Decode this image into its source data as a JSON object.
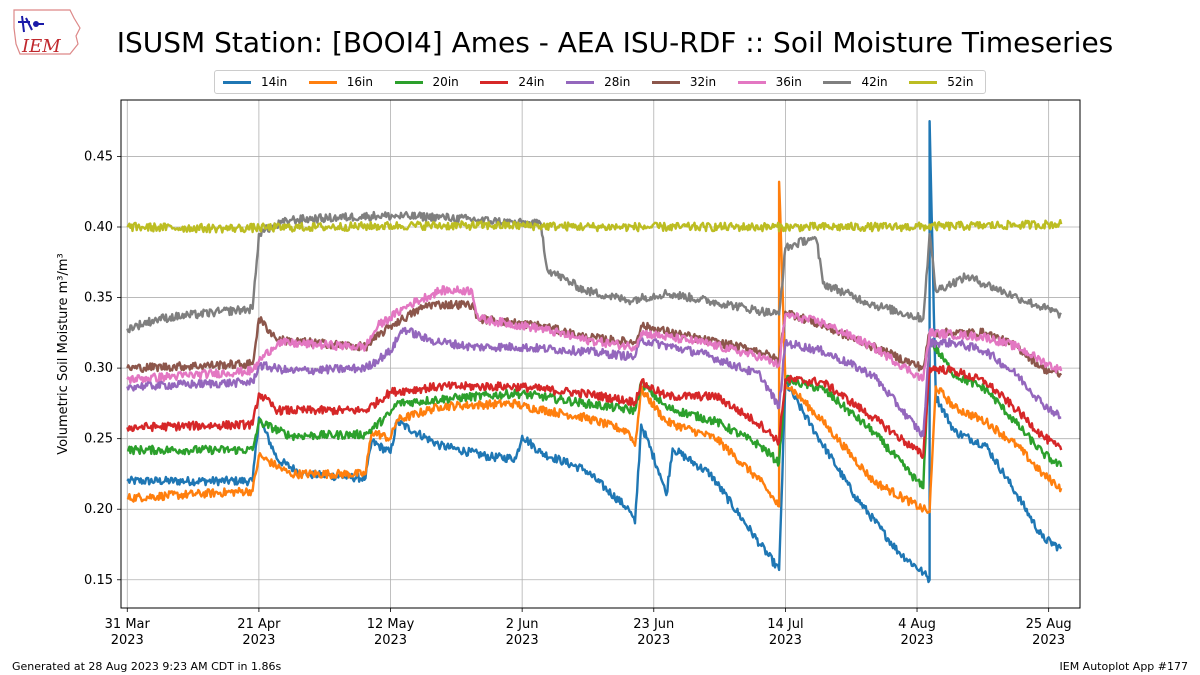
{
  "header": {
    "title": "ISUSM Station: [BOOI4] Ames - AEA ISU-RDF :: Soil Moisture Timeseries",
    "logo_text": "IEM"
  },
  "footer": {
    "generated": "Generated at 28 Aug 2023 9:23 AM CDT in 1.86s",
    "app": "IEM Autoplot App #177"
  },
  "chart_data": {
    "type": "line",
    "title": "ISUSM Station: [BOOI4] Ames - AEA ISU-RDF :: Soil Moisture Timeseries",
    "xlabel": "",
    "ylabel": "Volumetric Soil Moisture m³/m³",
    "xlim": [
      "2023-03-30",
      "2023-08-30"
    ],
    "ylim": [
      0.13,
      0.49
    ],
    "yticks": [
      0.15,
      0.2,
      0.25,
      0.3,
      0.35,
      0.4,
      0.45
    ],
    "xticks": [
      {
        "date": "2023-03-31",
        "label1": "31 Mar",
        "label2": "2023"
      },
      {
        "date": "2023-04-21",
        "label1": "21 Apr",
        "label2": "2023"
      },
      {
        "date": "2023-05-12",
        "label1": "12 May",
        "label2": "2023"
      },
      {
        "date": "2023-06-02",
        "label1": "2 Jun",
        "label2": "2023"
      },
      {
        "date": "2023-06-23",
        "label1": "23 Jun",
        "label2": "2023"
      },
      {
        "date": "2023-07-14",
        "label1": "14 Jul",
        "label2": "2023"
      },
      {
        "date": "2023-08-04",
        "label1": "4 Aug",
        "label2": "2023"
      },
      {
        "date": "2023-08-25",
        "label1": "25 Aug",
        "label2": "2023"
      }
    ],
    "grid": true,
    "legend_position": "top-center",
    "series": [
      {
        "name": "14in",
        "color": "#1f77b4",
        "points": [
          [
            "2023-03-31",
            0.22
          ],
          [
            "2023-04-20",
            0.22
          ],
          [
            "2023-04-21",
            0.265
          ],
          [
            "2023-04-24",
            0.235
          ],
          [
            "2023-04-28",
            0.225
          ],
          [
            "2023-05-08",
            0.222
          ],
          [
            "2023-05-09",
            0.248
          ],
          [
            "2023-05-12",
            0.24
          ],
          [
            "2023-05-13",
            0.262
          ],
          [
            "2023-05-20",
            0.245
          ],
          [
            "2023-05-28",
            0.237
          ],
          [
            "2023-06-01",
            0.236
          ],
          [
            "2023-06-02",
            0.252
          ],
          [
            "2023-06-05",
            0.24
          ],
          [
            "2023-06-12",
            0.228
          ],
          [
            "2023-06-19",
            0.2
          ],
          [
            "2023-06-20",
            0.19
          ],
          [
            "2023-06-21",
            0.26
          ],
          [
            "2023-06-24",
            0.225
          ],
          [
            "2023-06-25",
            0.21
          ],
          [
            "2023-06-26",
            0.243
          ],
          [
            "2023-07-02",
            0.225
          ],
          [
            "2023-07-10",
            0.175
          ],
          [
            "2023-07-13",
            0.157
          ],
          [
            "2023-07-14",
            0.29
          ],
          [
            "2023-07-18",
            0.26
          ],
          [
            "2023-07-25",
            0.21
          ],
          [
            "2023-08-01",
            0.17
          ],
          [
            "2023-08-05",
            0.155
          ],
          [
            "2023-08-06",
            0.15
          ],
          [
            "2023-08-06",
            0.475
          ],
          [
            "2023-08-07",
            0.28
          ],
          [
            "2023-08-10",
            0.255
          ],
          [
            "2023-08-15",
            0.245
          ],
          [
            "2023-08-20",
            0.21
          ],
          [
            "2023-08-24",
            0.18
          ],
          [
            "2023-08-27",
            0.172
          ]
        ]
      },
      {
        "name": "16in",
        "color": "#ff7f0e",
        "points": [
          [
            "2023-03-31",
            0.208
          ],
          [
            "2023-04-20",
            0.213
          ],
          [
            "2023-04-21",
            0.238
          ],
          [
            "2023-04-26",
            0.225
          ],
          [
            "2023-05-08",
            0.225
          ],
          [
            "2023-05-09",
            0.255
          ],
          [
            "2023-05-12",
            0.25
          ],
          [
            "2023-05-13",
            0.263
          ],
          [
            "2023-05-20",
            0.273
          ],
          [
            "2023-06-01",
            0.275
          ],
          [
            "2023-06-02",
            0.273
          ],
          [
            "2023-06-12",
            0.265
          ],
          [
            "2023-06-19",
            0.255
          ],
          [
            "2023-06-20",
            0.245
          ],
          [
            "2023-06-21",
            0.285
          ],
          [
            "2023-06-25",
            0.262
          ],
          [
            "2023-07-03",
            0.25
          ],
          [
            "2023-07-10",
            0.22
          ],
          [
            "2023-07-13",
            0.202
          ],
          [
            "2023-07-13",
            0.432
          ],
          [
            "2023-07-14",
            0.29
          ],
          [
            "2023-07-20",
            0.262
          ],
          [
            "2023-07-28",
            0.22
          ],
          [
            "2023-08-05",
            0.2
          ],
          [
            "2023-08-06",
            0.198
          ],
          [
            "2023-08-07",
            0.287
          ],
          [
            "2023-08-10",
            0.272
          ],
          [
            "2023-08-15",
            0.262
          ],
          [
            "2023-08-20",
            0.245
          ],
          [
            "2023-08-24",
            0.225
          ],
          [
            "2023-08-27",
            0.215
          ]
        ]
      },
      {
        "name": "20in",
        "color": "#2ca02c",
        "points": [
          [
            "2023-03-31",
            0.242
          ],
          [
            "2023-04-20",
            0.242
          ],
          [
            "2023-04-21",
            0.262
          ],
          [
            "2023-04-26",
            0.252
          ],
          [
            "2023-05-08",
            0.253
          ],
          [
            "2023-05-12",
            0.268
          ],
          [
            "2023-05-13",
            0.275
          ],
          [
            "2023-05-20",
            0.278
          ],
          [
            "2023-06-01",
            0.282
          ],
          [
            "2023-06-05",
            0.28
          ],
          [
            "2023-06-12",
            0.275
          ],
          [
            "2023-06-20",
            0.27
          ],
          [
            "2023-06-21",
            0.29
          ],
          [
            "2023-06-25",
            0.272
          ],
          [
            "2023-07-03",
            0.262
          ],
          [
            "2023-07-10",
            0.245
          ],
          [
            "2023-07-13",
            0.233
          ],
          [
            "2023-07-14",
            0.292
          ],
          [
            "2023-07-20",
            0.285
          ],
          [
            "2023-07-28",
            0.255
          ],
          [
            "2023-08-05",
            0.215
          ],
          [
            "2023-08-06",
            0.32
          ],
          [
            "2023-08-10",
            0.295
          ],
          [
            "2023-08-15",
            0.285
          ],
          [
            "2023-08-20",
            0.26
          ],
          [
            "2023-08-24",
            0.24
          ],
          [
            "2023-08-27",
            0.23
          ]
        ]
      },
      {
        "name": "24in",
        "color": "#d62728",
        "points": [
          [
            "2023-03-31",
            0.258
          ],
          [
            "2023-04-20",
            0.26
          ],
          [
            "2023-04-21",
            0.282
          ],
          [
            "2023-04-24",
            0.27
          ],
          [
            "2023-05-08",
            0.27
          ],
          [
            "2023-05-12",
            0.283
          ],
          [
            "2023-05-20",
            0.287
          ],
          [
            "2023-06-01",
            0.287
          ],
          [
            "2023-06-12",
            0.282
          ],
          [
            "2023-06-20",
            0.276
          ],
          [
            "2023-06-21",
            0.29
          ],
          [
            "2023-06-25",
            0.28
          ],
          [
            "2023-07-03",
            0.28
          ],
          [
            "2023-07-10",
            0.26
          ],
          [
            "2023-07-13",
            0.248
          ],
          [
            "2023-07-14",
            0.292
          ],
          [
            "2023-07-20",
            0.29
          ],
          [
            "2023-07-28",
            0.265
          ],
          [
            "2023-08-05",
            0.238
          ],
          [
            "2023-08-06",
            0.3
          ],
          [
            "2023-08-10",
            0.298
          ],
          [
            "2023-08-15",
            0.29
          ],
          [
            "2023-08-20",
            0.27
          ],
          [
            "2023-08-24",
            0.252
          ],
          [
            "2023-08-27",
            0.242
          ]
        ]
      },
      {
        "name": "28in",
        "color": "#9467bd",
        "points": [
          [
            "2023-03-31",
            0.287
          ],
          [
            "2023-04-20",
            0.29
          ],
          [
            "2023-04-21",
            0.302
          ],
          [
            "2023-04-26",
            0.298
          ],
          [
            "2023-05-08",
            0.3
          ],
          [
            "2023-05-12",
            0.312
          ],
          [
            "2023-05-14",
            0.328
          ],
          [
            "2023-05-18",
            0.32
          ],
          [
            "2023-05-25",
            0.315
          ],
          [
            "2023-06-01",
            0.315
          ],
          [
            "2023-06-12",
            0.312
          ],
          [
            "2023-06-20",
            0.308
          ],
          [
            "2023-06-21",
            0.32
          ],
          [
            "2023-07-01",
            0.31
          ],
          [
            "2023-07-10",
            0.295
          ],
          [
            "2023-07-13",
            0.272
          ],
          [
            "2023-07-14",
            0.318
          ],
          [
            "2023-07-20",
            0.312
          ],
          [
            "2023-07-28",
            0.295
          ],
          [
            "2023-08-05",
            0.252
          ],
          [
            "2023-08-06",
            0.318
          ],
          [
            "2023-08-10",
            0.318
          ],
          [
            "2023-08-15",
            0.312
          ],
          [
            "2023-08-20",
            0.295
          ],
          [
            "2023-08-24",
            0.275
          ],
          [
            "2023-08-27",
            0.265
          ]
        ]
      },
      {
        "name": "32in",
        "color": "#8c564b",
        "points": [
          [
            "2023-03-31",
            0.3
          ],
          [
            "2023-04-20",
            0.303
          ],
          [
            "2023-04-21",
            0.335
          ],
          [
            "2023-04-24",
            0.32
          ],
          [
            "2023-05-08",
            0.315
          ],
          [
            "2023-05-12",
            0.33
          ],
          [
            "2023-05-18",
            0.345
          ],
          [
            "2023-05-25",
            0.345
          ],
          [
            "2023-05-26",
            0.335
          ],
          [
            "2023-06-05",
            0.33
          ],
          [
            "2023-06-12",
            0.322
          ],
          [
            "2023-06-20",
            0.318
          ],
          [
            "2023-06-21",
            0.33
          ],
          [
            "2023-07-01",
            0.32
          ],
          [
            "2023-07-10",
            0.312
          ],
          [
            "2023-07-13",
            0.305
          ],
          [
            "2023-07-14",
            0.34
          ],
          [
            "2023-07-20",
            0.33
          ],
          [
            "2023-07-28",
            0.315
          ],
          [
            "2023-08-05",
            0.3
          ],
          [
            "2023-08-06",
            0.325
          ],
          [
            "2023-08-15",
            0.325
          ],
          [
            "2023-08-20",
            0.315
          ],
          [
            "2023-08-24",
            0.3
          ],
          [
            "2023-08-27",
            0.295
          ]
        ]
      },
      {
        "name": "36in",
        "color": "#e377c2",
        "points": [
          [
            "2023-03-31",
            0.292
          ],
          [
            "2023-04-20",
            0.298
          ],
          [
            "2023-04-21",
            0.305
          ],
          [
            "2023-04-24",
            0.318
          ],
          [
            "2023-05-08",
            0.315
          ],
          [
            "2023-05-10",
            0.33
          ],
          [
            "2023-05-15",
            0.345
          ],
          [
            "2023-05-20",
            0.355
          ],
          [
            "2023-05-25",
            0.355
          ],
          [
            "2023-05-26",
            0.335
          ],
          [
            "2023-06-05",
            0.328
          ],
          [
            "2023-06-12",
            0.32
          ],
          [
            "2023-06-20",
            0.315
          ],
          [
            "2023-06-21",
            0.325
          ],
          [
            "2023-07-01",
            0.318
          ],
          [
            "2023-07-10",
            0.308
          ],
          [
            "2023-07-13",
            0.302
          ],
          [
            "2023-07-14",
            0.338
          ],
          [
            "2023-07-20",
            0.332
          ],
          [
            "2023-07-28",
            0.315
          ],
          [
            "2023-08-05",
            0.292
          ],
          [
            "2023-08-06",
            0.325
          ],
          [
            "2023-08-15",
            0.322
          ],
          [
            "2023-08-20",
            0.315
          ],
          [
            "2023-08-24",
            0.305
          ],
          [
            "2023-08-27",
            0.298
          ]
        ]
      },
      {
        "name": "42in",
        "color": "#7f7f7f",
        "points": [
          [
            "2023-03-31",
            0.328
          ],
          [
            "2023-04-05",
            0.335
          ],
          [
            "2023-04-15",
            0.34
          ],
          [
            "2023-04-20",
            0.342
          ],
          [
            "2023-04-21",
            0.395
          ],
          [
            "2023-04-22",
            0.398
          ],
          [
            "2023-04-26",
            0.405
          ],
          [
            "2023-05-10",
            0.408
          ],
          [
            "2023-05-20",
            0.407
          ],
          [
            "2023-06-01",
            0.403
          ],
          [
            "2023-06-05",
            0.402
          ],
          [
            "2023-06-06",
            0.37
          ],
          [
            "2023-06-12",
            0.355
          ],
          [
            "2023-06-19",
            0.348
          ],
          [
            "2023-06-25",
            0.353
          ],
          [
            "2023-07-05",
            0.345
          ],
          [
            "2023-07-13",
            0.338
          ],
          [
            "2023-07-14",
            0.385
          ],
          [
            "2023-07-18",
            0.392
          ],
          [
            "2023-07-19",
            0.39
          ],
          [
            "2023-07-20",
            0.36
          ],
          [
            "2023-07-28",
            0.345
          ],
          [
            "2023-08-05",
            0.335
          ],
          [
            "2023-08-06",
            0.395
          ],
          [
            "2023-08-07",
            0.355
          ],
          [
            "2023-08-12",
            0.365
          ],
          [
            "2023-08-20",
            0.35
          ],
          [
            "2023-08-27",
            0.338
          ]
        ]
      },
      {
        "name": "52in",
        "color": "#bcbd22",
        "points": [
          [
            "2023-03-31",
            0.4
          ],
          [
            "2023-04-15",
            0.399
          ],
          [
            "2023-05-01",
            0.4
          ],
          [
            "2023-05-15",
            0.401
          ],
          [
            "2023-06-01",
            0.401
          ],
          [
            "2023-06-15",
            0.4
          ],
          [
            "2023-07-01",
            0.4
          ],
          [
            "2023-07-15",
            0.4
          ],
          [
            "2023-08-01",
            0.4
          ],
          [
            "2023-08-15",
            0.401
          ],
          [
            "2023-08-27",
            0.402
          ]
        ]
      }
    ]
  }
}
